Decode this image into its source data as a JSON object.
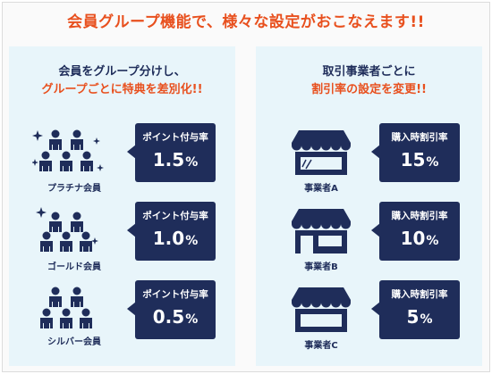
{
  "colors": {
    "accent": "#e8501e",
    "navy": "#1f2d5a",
    "panel_bg": "#e8f5fa"
  },
  "headline": "会員グループ機能で、様々な設定がおこなえます!!",
  "left_panel": {
    "title_line1": "会員をグループ分けし、",
    "title_line2": "グループごとに特典を差別化!!",
    "rows": [
      {
        "icon": "platinum-members-icon",
        "caption": "プラチナ会員",
        "bubble_label": "ポイント付与率",
        "value": "1.5",
        "unit": "%"
      },
      {
        "icon": "gold-members-icon",
        "caption": "ゴールド会員",
        "bubble_label": "ポイント付与率",
        "value": "1.0",
        "unit": "%"
      },
      {
        "icon": "silver-members-icon",
        "caption": "シルバー会員",
        "bubble_label": "ポイント付与率",
        "value": "0.5",
        "unit": "%"
      }
    ]
  },
  "right_panel": {
    "title_line1": "取引事業者ごとに",
    "title_line2": "割引率の設定を変更!!",
    "rows": [
      {
        "icon": "store-a-icon",
        "caption": "事業者A",
        "bubble_label": "購入時割引率",
        "value": "15",
        "unit": "%"
      },
      {
        "icon": "store-b-icon",
        "caption": "事業者B",
        "bubble_label": "購入時割引率",
        "value": "10",
        "unit": "%"
      },
      {
        "icon": "store-c-icon",
        "caption": "事業者C",
        "bubble_label": "購入時割引率",
        "value": "5",
        "unit": "%"
      }
    ]
  }
}
